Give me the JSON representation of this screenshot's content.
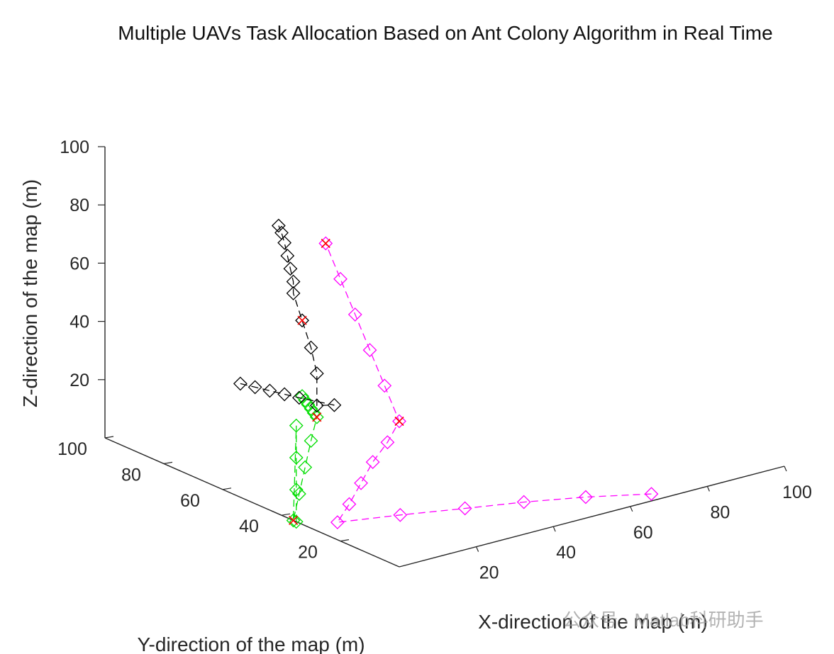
{
  "chart_data": {
    "type": "line-3d",
    "title": "Multiple UAVs Task Allocation Based on Ant Colony Algorithm in Real Time",
    "xlabel": "X-direction of the map (m)",
    "ylabel": "Y-direction of the map (m)",
    "zlabel": "Z-direction of the map (m)",
    "xlim": [
      0,
      100
    ],
    "ylim": [
      0,
      100
    ],
    "zlim": [
      0,
      100
    ],
    "xticks": [
      20,
      40,
      60,
      80,
      100
    ],
    "yticks": [
      20,
      40,
      60,
      80,
      100
    ],
    "zticks": [
      20,
      40,
      60,
      80,
      100
    ],
    "grid": false,
    "marker": "diamond",
    "linestyle": "dashed",
    "series": [
      {
        "color": "#ff00ff",
        "points": [
          [
            67,
            2,
            1
          ],
          [
            53,
            6,
            3
          ],
          [
            40,
            10,
            4
          ],
          [
            27,
            13,
            5
          ],
          [
            14,
            18,
            5
          ],
          [
            0,
            21,
            6
          ],
          [
            0,
            17,
            14
          ],
          [
            0,
            13,
            23
          ],
          [
            0,
            9,
            32
          ],
          [
            0,
            4,
            41
          ],
          [
            0,
            0,
            50
          ],
          [
            0,
            5,
            60
          ],
          [
            0,
            10,
            70
          ],
          [
            0,
            15,
            80
          ],
          [
            0,
            20,
            90
          ],
          [
            0,
            25,
            100
          ]
        ]
      },
      {
        "color": "#00dd00",
        "points": [
          [
            0,
            35,
            0
          ],
          [
            0,
            35,
            11
          ],
          [
            0,
            35,
            22
          ],
          [
            0,
            35,
            33
          ],
          [
            0,
            36,
            0
          ],
          [
            0,
            34,
            10
          ],
          [
            0,
            32,
            20
          ],
          [
            0,
            30,
            30
          ],
          [
            0,
            28,
            39
          ],
          [
            0,
            29,
            40
          ],
          [
            0,
            30,
            41
          ],
          [
            0,
            31,
            42
          ],
          [
            0,
            32,
            43
          ],
          [
            0,
            33,
            44
          ]
        ]
      },
      {
        "color": "#000000",
        "points": [
          [
            0,
            54,
            39
          ],
          [
            0,
            49,
            40
          ],
          [
            0,
            44,
            41
          ],
          [
            0,
            39,
            42
          ],
          [
            0,
            34,
            43
          ],
          [
            3,
            26,
            43
          ],
          [
            0,
            28,
            43
          ],
          [
            0,
            28,
            54
          ],
          [
            0,
            30,
            62
          ],
          [
            0,
            33,
            70
          ],
          [
            0,
            36,
            78
          ],
          [
            0,
            36,
            82
          ],
          [
            0,
            37,
            86
          ],
          [
            0,
            38,
            90
          ],
          [
            0,
            39,
            94
          ],
          [
            0,
            40,
            97
          ],
          [
            0,
            41,
            99
          ]
        ]
      }
    ],
    "task_points": [
      {
        "color": "#ff0000",
        "marker": "x",
        "point": [
          0,
          0,
          50
        ]
      },
      {
        "color": "#ff0000",
        "marker": "x",
        "point": [
          0,
          25,
          100
        ]
      },
      {
        "color": "#ff0000",
        "marker": "x",
        "point": [
          0,
          36,
          0
        ]
      },
      {
        "color": "#ff0000",
        "marker": "x",
        "point": [
          0,
          28,
          39
        ]
      },
      {
        "color": "#ff0000",
        "marker": "x",
        "point": [
          0,
          33,
          70
        ]
      }
    ]
  },
  "watermark": "公众号 · Matlab科研助手"
}
